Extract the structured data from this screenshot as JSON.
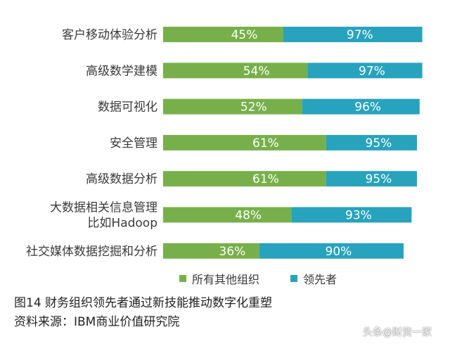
{
  "chart_data": {
    "type": "bar",
    "orientation": "horizontal",
    "stacked": true,
    "categories": [
      "客户移动体验分析",
      "高级数学建模",
      "数据可视化",
      "安全管理",
      "高级数据分析",
      "大数据相关信息管理\n比如Hadoop",
      "社交媒体数据挖掘和分析"
    ],
    "series": [
      {
        "name": "所有其他组织",
        "values": [
          45,
          54,
          52,
          61,
          61,
          48,
          36
        ],
        "labels": [
          "45%",
          "54%",
          "52%",
          "61%",
          "61%",
          "48%",
          "36%"
        ],
        "color": "#77b04a"
      },
      {
        "name": "领先者",
        "values": [
          97,
          97,
          96,
          95,
          95,
          93,
          90
        ],
        "labels": [
          "97%",
          "97%",
          "96%",
          "95%",
          "95%",
          "93%",
          "90%"
        ],
        "color": "#27a3bd"
      }
    ],
    "legend_position": "bottom",
    "grid": false
  },
  "caption": {
    "title": "图14  财务组织领先者通过新技能推动数字化重塑",
    "source": "资料来源：IBM商业价值研究院"
  },
  "watermark": "头条@财资一家"
}
